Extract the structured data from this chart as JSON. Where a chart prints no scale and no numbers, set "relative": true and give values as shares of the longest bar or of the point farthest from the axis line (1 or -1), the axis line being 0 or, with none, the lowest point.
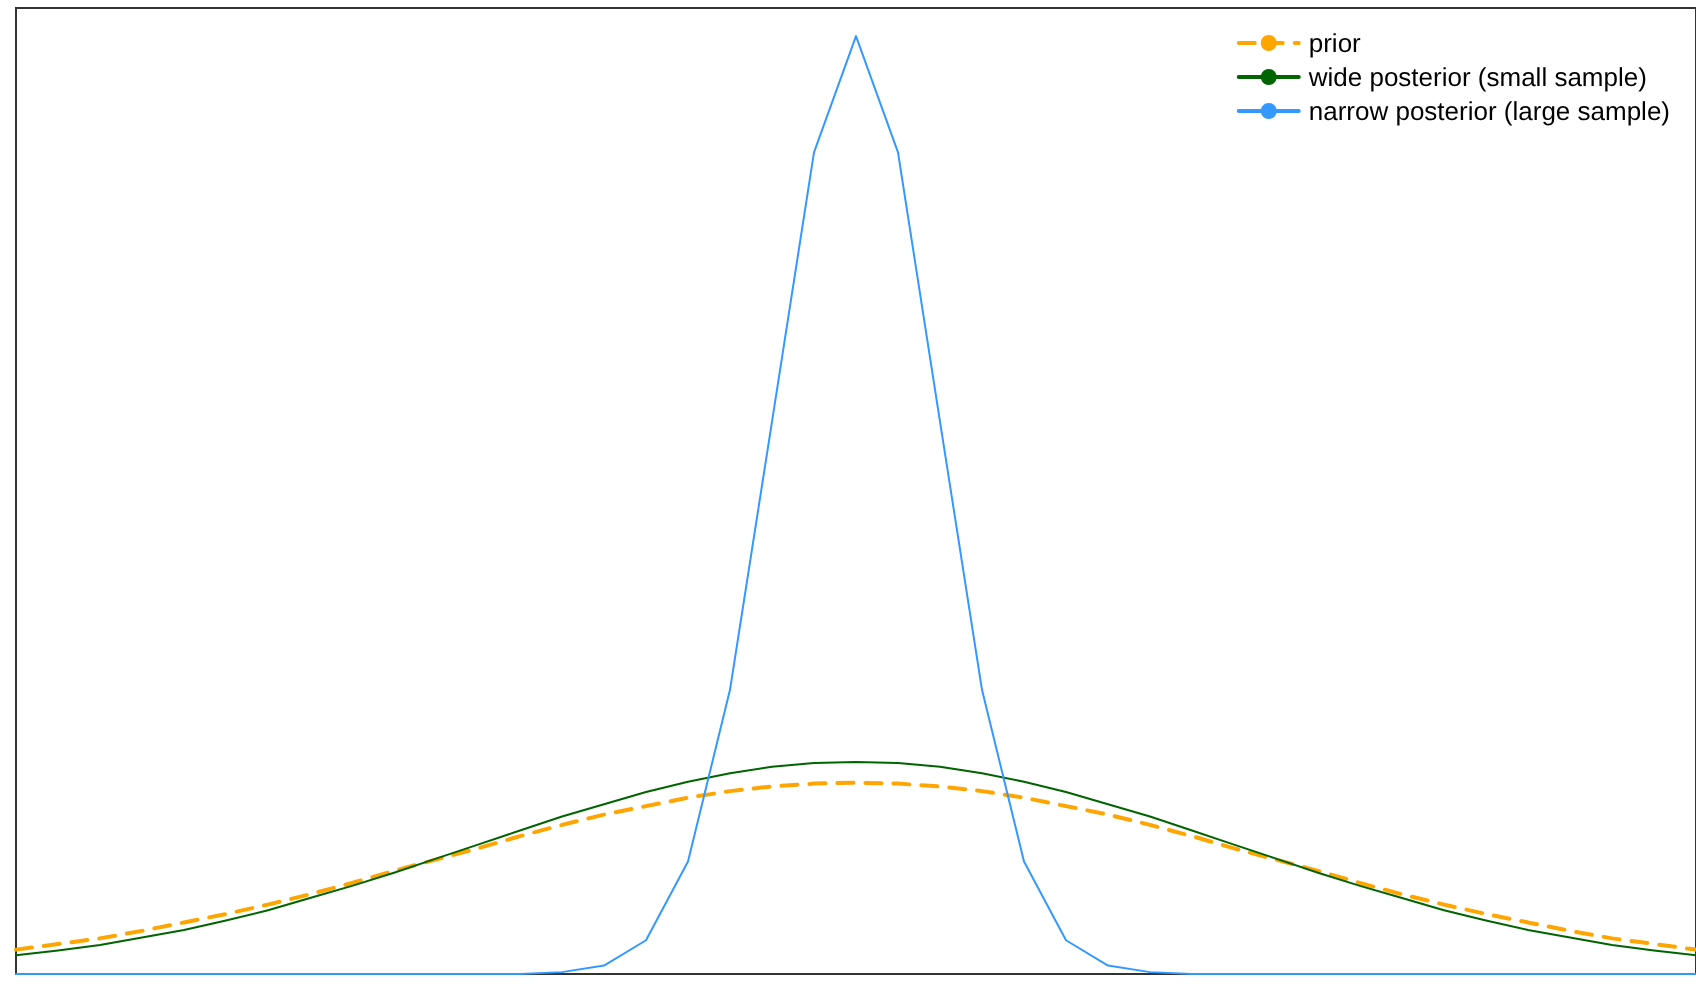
{
  "chart_data": {
    "type": "line",
    "relative": true,
    "legend": "top right",
    "marker": "none",
    "grid": false,
    "tick_labels": false,
    "categories": [
      null,
      null,
      null,
      null,
      null,
      null,
      null,
      null,
      null,
      null,
      null,
      null,
      null,
      null,
      null,
      null,
      null,
      null,
      null,
      null,
      null,
      null,
      null,
      null,
      null,
      null,
      null,
      null,
      null,
      null,
      null,
      null,
      null,
      null,
      null,
      null,
      null,
      null,
      null,
      null,
      null
    ],
    "series": [
      {
        "name": "prior",
        "color": "#ffa500",
        "line_style": "dashed",
        "values": [
          0.026,
          0.032,
          0.038,
          0.046,
          0.055,
          0.064,
          0.074,
          0.085,
          0.097,
          0.11,
          0.122,
          0.134,
          0.147,
          0.159,
          0.17,
          0.179,
          0.188,
          0.195,
          0.2,
          0.203,
          0.204,
          0.203,
          0.2,
          0.195,
          0.188,
          0.179,
          0.17,
          0.159,
          0.147,
          0.134,
          0.122,
          0.11,
          0.097,
          0.085,
          0.074,
          0.064,
          0.055,
          0.046,
          0.038,
          0.032,
          0.026
        ]
      },
      {
        "name": "wide posterior (small sample)",
        "color": "#006400",
        "line_style": "solid",
        "values": [
          0.02,
          0.025,
          0.031,
          0.039,
          0.047,
          0.057,
          0.068,
          0.081,
          0.094,
          0.108,
          0.123,
          0.138,
          0.153,
          0.168,
          0.181,
          0.194,
          0.205,
          0.214,
          0.221,
          0.225,
          0.226,
          0.225,
          0.221,
          0.214,
          0.205,
          0.194,
          0.181,
          0.168,
          0.153,
          0.138,
          0.123,
          0.108,
          0.094,
          0.081,
          0.068,
          0.057,
          0.047,
          0.039,
          0.031,
          0.025,
          0.02
        ]
      },
      {
        "name": "narrow posterior (large sample)",
        "color": "#3399ff",
        "line_style": "solid",
        "values": [
          0,
          0,
          0,
          0,
          0,
          0,
          0,
          0,
          0,
          0,
          0,
          0,
          0,
          0.002,
          0.009,
          0.036,
          0.12,
          0.303,
          0.589,
          0.876,
          1,
          0.876,
          0.589,
          0.303,
          0.12,
          0.036,
          0.009,
          0.002,
          0,
          0,
          0,
          0,
          0,
          0,
          0,
          0,
          0,
          0,
          0,
          0,
          0
        ]
      }
    ]
  }
}
